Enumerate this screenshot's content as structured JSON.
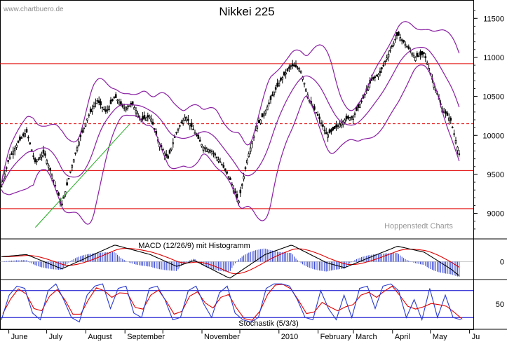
{
  "header": {
    "watermark": "www.chartbuero.de",
    "title": "Nikkei 225",
    "source": "Hoppenstedt Charts"
  },
  "colors": {
    "price": "#000000",
    "bollinger": "#8a1fa3",
    "support_lines": "#e00000",
    "trendline": "#22aa22",
    "macd_line": "#000000",
    "signal_line": "#e00000",
    "histogram": "#2a3bd0",
    "stoch_k": "#2a3bd0",
    "stoch_d": "#e00000",
    "stoch_band": "#0000cc",
    "grid": "#000000"
  },
  "chart_data": [
    {
      "type": "line",
      "title": "Nikkei 225",
      "x_range": [
        "2009-05-25",
        "2010-06-04"
      ],
      "ylim": [
        8700,
        11700
      ],
      "y_ticks": [
        9000,
        9500,
        10000,
        10500,
        11000,
        11500
      ],
      "x_labels": [
        "June",
        "July",
        "August",
        "September",
        "November",
        "2010",
        "February",
        "March",
        "April",
        "May",
        "Ju"
      ],
      "horizontal_lines": [
        {
          "value": 10920,
          "style": "solid"
        },
        {
          "value": 10150,
          "style": "dashed"
        },
        {
          "value": 9550,
          "style": "solid"
        },
        {
          "value": 9060,
          "style": "solid"
        }
      ],
      "series": [
        {
          "values": [
            [
              "2009-05-25",
              9280
            ],
            [
              "2009-06-01",
              9700
            ],
            [
              "2009-06-08",
              9900
            ],
            [
              "2009-06-15",
              10050
            ],
            [
              "2009-06-22",
              9650
            ],
            [
              "2009-06-29",
              9780
            ],
            [
              "2009-07-06",
              9450
            ],
            [
              "2009-07-13",
              9100
            ],
            [
              "2009-07-20",
              9550
            ],
            [
              "2009-07-27",
              9950
            ],
            [
              "2009-08-03",
              10250
            ],
            [
              "2009-08-10",
              10450
            ],
            [
              "2009-08-17",
              10300
            ],
            [
              "2009-08-24",
              10500
            ],
            [
              "2009-08-31",
              10350
            ],
            [
              "2009-09-07",
              10400
            ],
            [
              "2009-09-14",
              10200
            ],
            [
              "2009-09-21",
              10250
            ],
            [
              "2009-09-28",
              9900
            ],
            [
              "2009-10-05",
              9700
            ],
            [
              "2009-10-12",
              10050
            ],
            [
              "2009-10-19",
              10250
            ],
            [
              "2009-10-26",
              10050
            ],
            [
              "2009-11-02",
              9850
            ],
            [
              "2009-11-09",
              9800
            ],
            [
              "2009-11-16",
              9650
            ],
            [
              "2009-11-23",
              9450
            ],
            [
              "2009-11-30",
              9150
            ],
            [
              "2009-12-07",
              9700
            ],
            [
              "2009-12-14",
              10100
            ],
            [
              "2009-12-21",
              10300
            ],
            [
              "2009-12-28",
              10550
            ],
            [
              "2010-01-04",
              10750
            ],
            [
              "2010-01-11",
              10900
            ],
            [
              "2010-01-18",
              10850
            ],
            [
              "2010-01-25",
              10450
            ],
            [
              "2010-02-01",
              10250
            ],
            [
              "2010-02-08",
              10000
            ],
            [
              "2010-02-15",
              10100
            ],
            [
              "2010-02-22",
              10200
            ],
            [
              "2010-03-01",
              10250
            ],
            [
              "2010-03-08",
              10450
            ],
            [
              "2010-03-15",
              10700
            ],
            [
              "2010-03-22",
              10800
            ],
            [
              "2010-03-29",
              11050
            ],
            [
              "2010-04-05",
              11300
            ],
            [
              "2010-04-12",
              11150
            ],
            [
              "2010-04-19",
              11000
            ],
            [
              "2010-04-26",
              11050
            ],
            [
              "2010-05-03",
              10700
            ],
            [
              "2010-05-10",
              10350
            ],
            [
              "2010-05-17",
              10200
            ],
            [
              "2010-05-24",
              9750
            ]
          ]
        }
      ]
    },
    {
      "type": "line",
      "title": "MACD (12/26/9) mit Histogramm",
      "y_ticks": [
        0
      ],
      "series": [
        {
          "values": [
            [
              "2009-05-25",
              40
            ],
            [
              "2009-06-15",
              60
            ],
            [
              "2009-07-13",
              -60
            ],
            [
              "2009-08-03",
              40
            ],
            [
              "2009-08-24",
              140
            ],
            [
              "2009-09-21",
              60
            ],
            [
              "2009-10-12",
              -40
            ],
            [
              "2009-10-26",
              10
            ],
            [
              "2009-11-23",
              -140
            ],
            [
              "2009-12-21",
              60
            ],
            [
              "2010-01-11",
              140
            ],
            [
              "2010-02-08",
              -10
            ],
            [
              "2010-02-22",
              -50
            ],
            [
              "2010-03-15",
              40
            ],
            [
              "2010-04-05",
              130
            ],
            [
              "2010-04-26",
              80
            ],
            [
              "2010-05-17",
              -60
            ],
            [
              "2010-05-24",
              -120
            ]
          ]
        }
      ]
    },
    {
      "type": "line",
      "title": "Stochastik (5/3/3)",
      "ylim": [
        0,
        100
      ],
      "y_ticks": [
        50
      ],
      "horizontal_lines": [
        {
          "value": 80,
          "style": "solid"
        },
        {
          "value": 20,
          "style": "solid"
        }
      ],
      "series": [
        {
          "values": [
            15,
            70,
            90,
            85,
            30,
            15,
            80,
            95,
            60,
            20,
            10,
            70,
            90,
            95,
            40,
            85,
            90,
            30,
            20,
            85,
            90,
            60,
            15,
            20,
            80,
            90,
            50,
            20,
            75,
            90,
            30,
            15,
            10,
            20,
            85,
            95,
            95,
            90,
            60,
            20,
            15,
            80,
            40,
            15,
            70,
            20,
            85,
            90,
            40,
            90,
            95,
            80,
            20,
            60,
            15,
            85,
            20,
            70,
            20,
            15
          ]
        }
      ]
    }
  ]
}
